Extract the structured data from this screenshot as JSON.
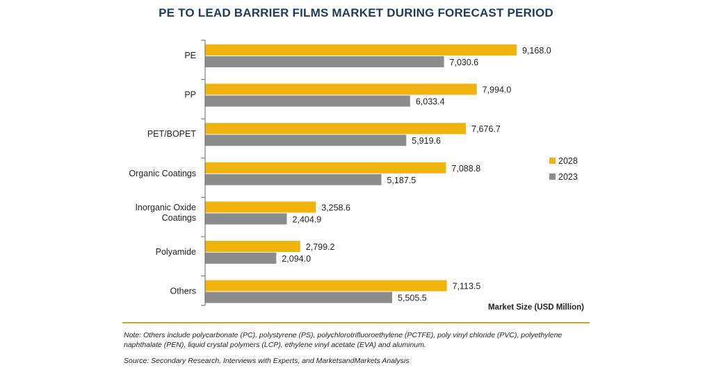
{
  "chart_data": {
    "type": "bar",
    "orientation": "horizontal",
    "title": "PE TO LEAD BARRIER FILMS MARKET DURING FORECAST PERIOD",
    "categories": [
      "PE",
      "PP",
      "PET/BOPET",
      "Organic Coatings",
      "Inorganic Oxide\nCoatings",
      "Polyamide",
      "Others"
    ],
    "series": [
      {
        "name": "2028",
        "color": "#f1b40f",
        "values": [
          9168.0,
          7994.0,
          7676.7,
          7088.8,
          3258.6,
          2799.2,
          7113.5
        ],
        "labels": [
          "9,168.0",
          "7,994.0",
          "7,676.7",
          "7,088.8",
          "3,258.6",
          "2,799.2",
          "7,113.5"
        ]
      },
      {
        "name": "2023",
        "color": "#8c8c8c",
        "values": [
          7030.6,
          6033.4,
          5919.6,
          5187.5,
          2404.9,
          2094.0,
          5505.5
        ],
        "labels": [
          "7,030.6",
          "6,033.4",
          "5,919.6",
          "5,187.5",
          "2,404.9",
          "2,094.0",
          "5,505.5"
        ]
      }
    ],
    "xlabel": "Market Size (USD Million)",
    "xlim": [
      0,
      9168.0
    ],
    "legend_position": "right",
    "grid": false
  },
  "notes": {
    "note_text": "Note: Others include polycarbonate (PC), polystyrene (PS), polychlorotrifluoroethylene (PCTFE), poly vinyl chloride (PVC), polyethylene naphthalate (PEN), liquid crystal polymers (LCP), ethylene vinyl acetate (EVA) and aluminum.",
    "source_text": "Source: Secondary Research, Interviews with Experts, and MarketsandMarkets Analysis"
  }
}
